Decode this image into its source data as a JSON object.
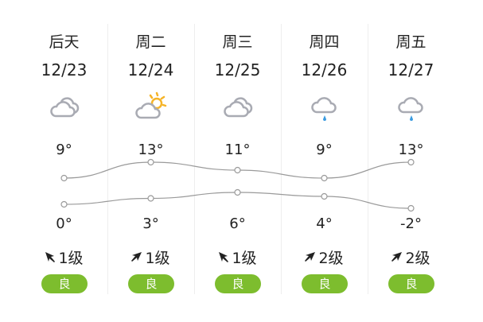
{
  "days": [
    {
      "day": "后天",
      "date": "12/23",
      "weather_icon": "cloudy-icon",
      "high": "9°",
      "low": "0°",
      "high_value": 9,
      "low_value": 0,
      "wind_dir": "northwest",
      "wind": "1级",
      "air_quality": "良"
    },
    {
      "day": "周二",
      "date": "12/24",
      "weather_icon": "partly-sunny-icon",
      "high": "13°",
      "low": "3°",
      "high_value": 13,
      "low_value": 3,
      "wind_dir": "northeast",
      "wind": "1级",
      "air_quality": "良"
    },
    {
      "day": "周三",
      "date": "12/25",
      "weather_icon": "cloudy-icon",
      "high": "11°",
      "low": "6°",
      "high_value": 11,
      "low_value": 6,
      "wind_dir": "northwest",
      "wind": "1级",
      "air_quality": "良"
    },
    {
      "day": "周四",
      "date": "12/26",
      "weather_icon": "light-rain-icon",
      "high": "9°",
      "low": "4°",
      "high_value": 9,
      "low_value": 4,
      "wind_dir": "northeast",
      "wind": "2级",
      "air_quality": "良"
    },
    {
      "day": "周五",
      "date": "12/27",
      "weather_icon": "light-rain-icon",
      "high": "13°",
      "low": "-2°",
      "high_value": 13,
      "low_value": -2,
      "wind_dir": "northeast",
      "wind": "2级",
      "air_quality": "良"
    }
  ],
  "colors": {
    "cloud": "#a9abb3",
    "sun": "#f5b428",
    "rain": "#3a9be0",
    "air_good": "#7dbd2e",
    "line": "#9a9a9a"
  }
}
